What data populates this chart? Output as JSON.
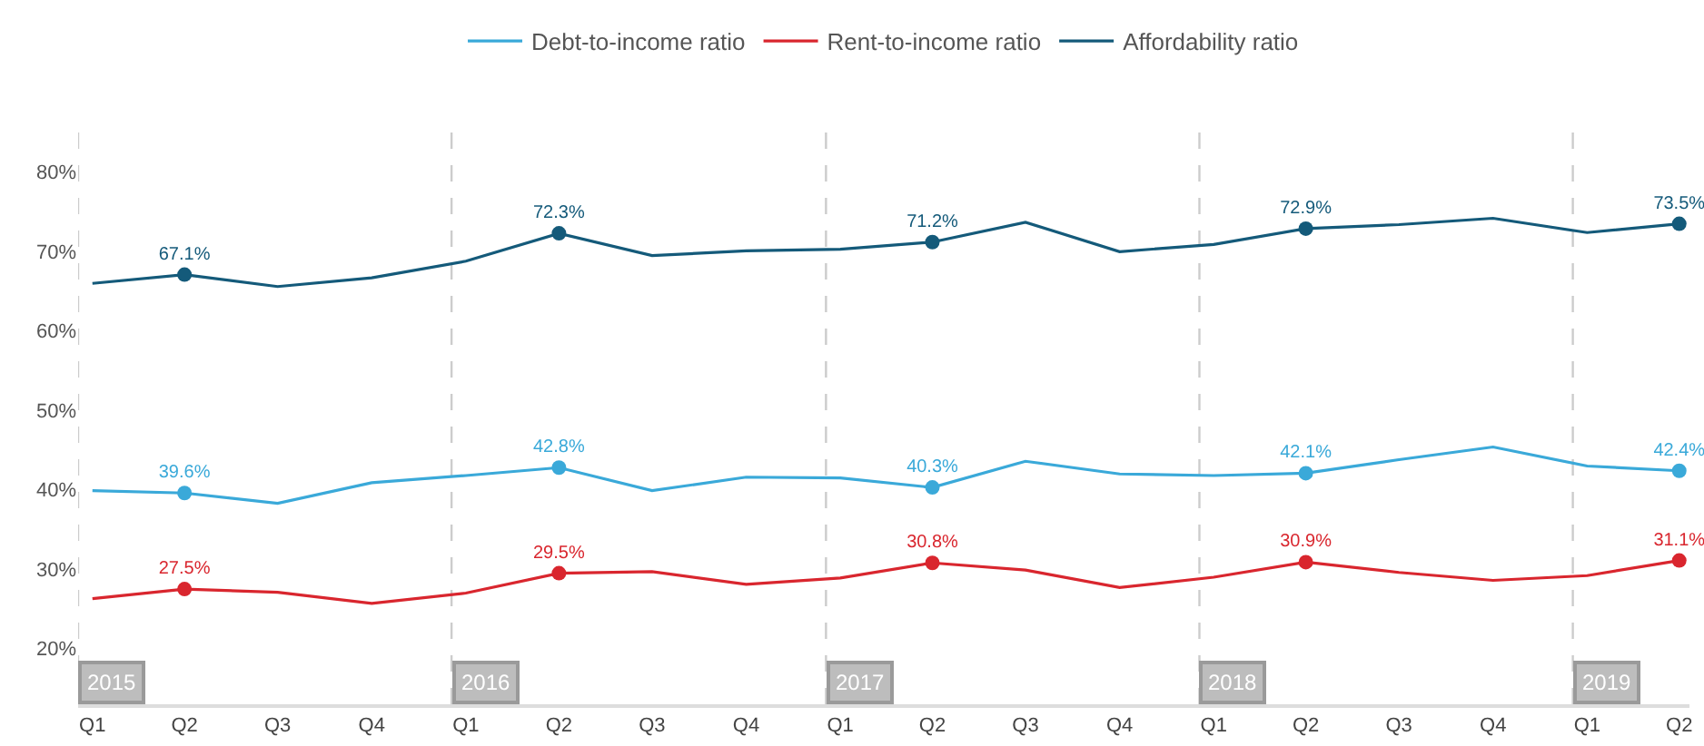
{
  "chart_data": {
    "type": "line",
    "x": [
      "2015-01-15",
      "2015-04-15",
      "2015-07-15",
      "2015-10-15",
      "2016-01-15",
      "2016-04-15",
      "2016-07-15",
      "2016-10-15",
      "2017-01-15",
      "2017-04-15",
      "2017-07-15",
      "2017-10-15",
      "2018-01-15",
      "2018-04-15",
      "2018-07-15",
      "2018-10-15",
      "2019-01-15",
      "2019-04-15"
    ],
    "series": [
      {
        "name": "Debt-to-income ratio",
        "color": "#3aa9d9",
        "values": [
          39.9,
          39.6,
          38.3,
          40.9,
          41.8,
          42.8,
          39.9,
          41.6,
          41.5,
          40.3,
          43.6,
          42.0,
          41.8,
          42.1,
          43.8,
          45.4,
          43.0,
          42.4
        ]
      },
      {
        "name": "Rent-to-income ratio",
        "color": "#d9262e",
        "values": [
          26.3,
          27.5,
          27.1,
          25.7,
          27.0,
          29.5,
          29.7,
          28.1,
          28.9,
          30.8,
          29.9,
          27.7,
          29.0,
          30.9,
          29.6,
          28.6,
          29.2,
          31.1
        ]
      },
      {
        "name": "Affordability ratio",
        "color": "#145a7a",
        "values": [
          66.0,
          67.1,
          65.6,
          66.7,
          68.8,
          72.3,
          69.5,
          70.1,
          70.3,
          71.2,
          73.7,
          70.0,
          70.9,
          72.9,
          73.4,
          74.2,
          72.4,
          73.5
        ]
      },
      {
        "type": "scatter",
        "marker": "circle",
        "color": "#3aa9d9",
        "x": [
          "2015-04-15",
          "2016-04-15",
          "2017-04-15",
          "2018-04-15",
          "2019-04-15"
        ],
        "values": [
          39.6,
          42.8,
          40.3,
          42.1,
          42.4
        ],
        "value_labels": [
          "39.6%",
          "42.8%",
          "40.3%",
          "42.1%",
          "42.4%"
        ]
      },
      {
        "type": "scatter",
        "marker": "circle",
        "color": "#d9262e",
        "x": [
          "2015-04-15",
          "2016-04-15",
          "2017-04-15",
          "2018-04-15",
          "2019-04-15"
        ],
        "values": [
          27.5,
          29.5,
          30.8,
          30.9,
          31.1
        ],
        "value_labels": [
          "27.5%",
          "29.5%",
          "30.8%",
          "30.9%",
          "31.1%"
        ]
      },
      {
        "type": "scatter",
        "marker": "circle",
        "color": "#145a7a",
        "x": [
          "2015-04-15",
          "2016-04-15",
          "2017-04-15",
          "2018-04-15",
          "2019-04-15"
        ],
        "values": [
          67.1,
          72.3,
          71.2,
          72.9,
          73.5
        ],
        "value_labels": [
          "67.1%",
          "72.3%",
          "71.2%",
          "72.9%",
          "73.5%"
        ]
      }
    ],
    "xlim": [
      "2015-01-01",
      "2019-04-25"
    ],
    "xticks": [
      {
        "value": "2015-01-15",
        "label": "Q1"
      },
      {
        "value": "2015-04-15",
        "label": "Q2"
      },
      {
        "value": "2015-07-15",
        "label": "Q3"
      },
      {
        "value": "2015-10-15",
        "label": "Q4"
      },
      {
        "value": "2016-01-15",
        "label": "Q1"
      },
      {
        "value": "2016-04-15",
        "label": "Q2"
      },
      {
        "value": "2016-07-15",
        "label": "Q3"
      },
      {
        "value": "2016-10-15",
        "label": "Q4"
      },
      {
        "value": "2017-01-15",
        "label": "Q1"
      },
      {
        "value": "2017-04-15",
        "label": "Q2"
      },
      {
        "value": "2017-07-15",
        "label": "Q3"
      },
      {
        "value": "2017-10-15",
        "label": "Q4"
      },
      {
        "value": "2018-01-15",
        "label": "Q1"
      },
      {
        "value": "2018-04-15",
        "label": "Q2"
      },
      {
        "value": "2018-07-15",
        "label": "Q3"
      },
      {
        "value": "2018-10-15",
        "label": "Q4"
      },
      {
        "value": "2019-01-15",
        "label": "Q1"
      },
      {
        "value": "2019-04-15",
        "label": "Q2"
      }
    ],
    "ylim": [
      13,
      85
    ],
    "yticks": [
      {
        "value": 20,
        "label": "20%"
      },
      {
        "value": 30,
        "label": "30%"
      },
      {
        "value": 40,
        "label": "40%"
      },
      {
        "value": 50,
        "label": "50%"
      },
      {
        "value": 60,
        "label": "60%"
      },
      {
        "value": 70,
        "label": "70%"
      },
      {
        "value": 80,
        "label": "80%"
      }
    ],
    "ref_lines": [
      {
        "axis": "x",
        "value": "2015-01-01",
        "label": "2015",
        "color": "#cccccc",
        "line_style": "dashed"
      },
      {
        "axis": "x",
        "value": "2016-01-01",
        "label": "2016",
        "color": "#cccccc",
        "line_style": "dashed"
      },
      {
        "axis": "x",
        "value": "2017-01-01",
        "label": "2017",
        "color": "#cccccc",
        "line_style": "dashed"
      },
      {
        "axis": "x",
        "value": "2018-01-01",
        "label": "2018",
        "color": "#cccccc",
        "line_style": "dashed"
      },
      {
        "axis": "x",
        "value": "2019-01-01",
        "label": "2019",
        "color": "#cccccc",
        "line_style": "dashed"
      }
    ],
    "grid": false,
    "legend": "top",
    "marker": "none",
    "line_style": "solid"
  }
}
